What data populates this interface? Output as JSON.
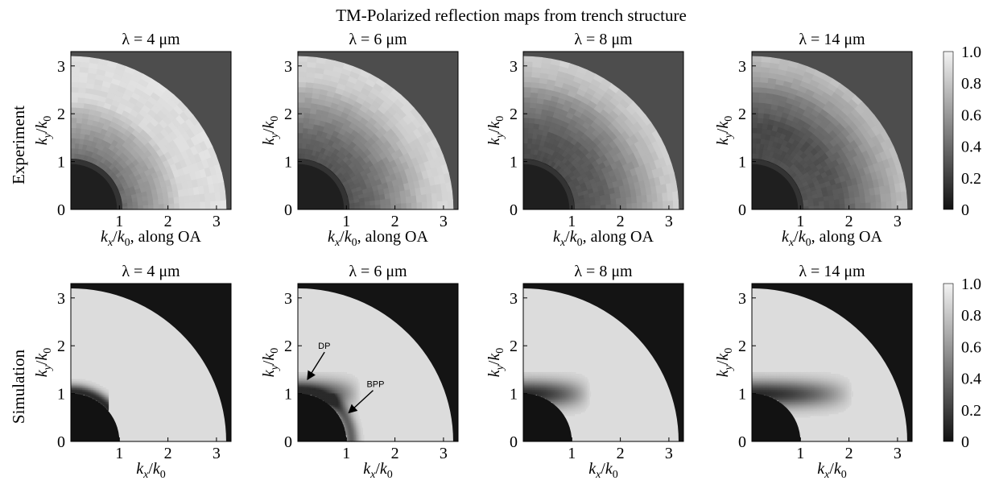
{
  "figure_title": "TM-Polarized reflection maps from trench structure",
  "row_labels": [
    "Experiment",
    "Simulation"
  ],
  "colorbar_ticks": [
    "1.0",
    "0.8",
    "0.6",
    "0.4",
    "0.2",
    "0"
  ],
  "colors": {
    "outside_region": "#4d4d4d",
    "outside_region_sim": "#141414",
    "max": "#f2f2f2",
    "min": "#1a1a1a"
  },
  "chart_data": [
    {
      "type": "heatmap",
      "row": "Experiment",
      "title": "λ = 4 μm",
      "xlabel": "k_x/k_0, along OA",
      "ylabel": "k_y/k_0",
      "xlim": [
        0,
        3.3
      ],
      "ylim": [
        0,
        3.3
      ],
      "xticks": [
        "1",
        "2",
        "3"
      ],
      "yticks": [
        "0",
        "1",
        "2",
        "3"
      ],
      "region": "quarter disk r ≤ 3.2 (outside ≈ 0.3)",
      "profile": [
        {
          "r": 0.0,
          "value": 0.28
        },
        {
          "r": 0.9,
          "value": 0.3
        },
        {
          "r": 1.0,
          "value": 0.05
        },
        {
          "r": 1.1,
          "value": 0.4
        },
        {
          "r": 1.5,
          "value": 0.55
        },
        {
          "r": 2.0,
          "value": 0.72
        },
        {
          "r": 2.3,
          "value": 0.88
        },
        {
          "r": 3.2,
          "value": 0.92
        }
      ]
    },
    {
      "type": "heatmap",
      "row": "Experiment",
      "title": "λ = 6 μm",
      "xlabel": "k_x/k_0, along OA",
      "ylabel": "k_y/k_0",
      "xlim": [
        0,
        3.3
      ],
      "ylim": [
        0,
        3.3
      ],
      "xticks": [
        "1",
        "2",
        "3"
      ],
      "yticks": [
        "0",
        "1",
        "2",
        "3"
      ],
      "profile": [
        {
          "r": 0.0,
          "value": 0.28
        },
        {
          "r": 0.9,
          "value": 0.3
        },
        {
          "r": 1.0,
          "value": 0.05
        },
        {
          "r": 1.1,
          "value": 0.3
        },
        {
          "r": 1.6,
          "value": 0.4
        },
        {
          "r": 2.2,
          "value": 0.62
        },
        {
          "r": 2.7,
          "value": 0.82
        },
        {
          "r": 3.2,
          "value": 0.88
        }
      ]
    },
    {
      "type": "heatmap",
      "row": "Experiment",
      "title": "λ = 8 μm",
      "xlabel": "k_x/k_0, along OA",
      "ylabel": "k_y/k_0",
      "xlim": [
        0,
        3.3
      ],
      "ylim": [
        0,
        3.3
      ],
      "xticks": [
        "1",
        "2",
        "3"
      ],
      "yticks": [
        "0",
        "1",
        "2",
        "3"
      ],
      "profile": [
        {
          "r": 0.0,
          "value": 0.3
        },
        {
          "r": 0.9,
          "value": 0.3
        },
        {
          "r": 1.0,
          "value": 0.05
        },
        {
          "r": 1.1,
          "value": 0.28
        },
        {
          "r": 1.7,
          "value": 0.35
        },
        {
          "r": 2.3,
          "value": 0.55
        },
        {
          "r": 2.8,
          "value": 0.75
        },
        {
          "r": 3.2,
          "value": 0.85
        }
      ]
    },
    {
      "type": "heatmap",
      "row": "Experiment",
      "title": "λ = 14 μm",
      "xlabel": "k_x/k_0, along OA",
      "ylabel": "k_y/k_0",
      "xlim": [
        0,
        3.3
      ],
      "ylim": [
        0,
        3.3
      ],
      "xticks": [
        "1",
        "2",
        "3"
      ],
      "yticks": [
        "0",
        "1",
        "2",
        "3"
      ],
      "profile": [
        {
          "r": 0.0,
          "value": 0.32
        },
        {
          "r": 0.9,
          "value": 0.32
        },
        {
          "r": 1.0,
          "value": 0.05
        },
        {
          "r": 1.1,
          "value": 0.3
        },
        {
          "r": 1.8,
          "value": 0.3
        },
        {
          "r": 2.4,
          "value": 0.5
        },
        {
          "r": 2.9,
          "value": 0.68
        },
        {
          "r": 3.2,
          "value": 0.78
        }
      ]
    },
    {
      "type": "heatmap",
      "row": "Simulation",
      "title": "λ = 4 μm",
      "xlabel": "k_x/k_0",
      "ylabel": "k_y/k_0",
      "xlim": [
        0,
        3.3
      ],
      "ylim": [
        0,
        3.3
      ],
      "xticks": [
        "1",
        "2",
        "3"
      ],
      "yticks": [
        "0",
        "1",
        "2",
        "3"
      ],
      "region": "quarter disk r ≤ 3.2 (outside ≈ 0.05)",
      "inner_dark_radius": 1.0,
      "dark_lobe": {
        "r_max": 1.25,
        "x_extent": 0.7
      },
      "base_value": 0.9
    },
    {
      "type": "heatmap",
      "row": "Simulation",
      "title": "λ = 6 μm",
      "xlabel": "k_x/k_0",
      "ylabel": "k_y/k_0",
      "xlim": [
        0,
        3.3
      ],
      "ylim": [
        0,
        3.3
      ],
      "xticks": [
        "1",
        "2",
        "3"
      ],
      "yticks": [
        "0",
        "1",
        "2",
        "3"
      ],
      "inner_dark_radius": 1.0,
      "dark_lobe": {
        "r_max": 1.3,
        "x_extent": 1.3
      },
      "base_value": 0.9,
      "annotations": [
        {
          "text": "DP",
          "target": [
            0.2,
            1.3
          ]
        },
        {
          "text": "BPP",
          "target": [
            1.05,
            0.6
          ]
        }
      ]
    },
    {
      "type": "heatmap",
      "row": "Simulation",
      "title": "λ = 8 μm",
      "xlabel": "k_x/k_0",
      "ylabel": "k_y/k_0",
      "xlim": [
        0,
        3.3
      ],
      "ylim": [
        0,
        3.3
      ],
      "xticks": [
        "1",
        "2",
        "3"
      ],
      "yticks": [
        "0",
        "1",
        "2",
        "3"
      ],
      "inner_dark_radius": 1.0,
      "dark_lobe": {
        "r_max": 1.3,
        "x_extent": 1.4
      },
      "base_value": 0.9
    },
    {
      "type": "heatmap",
      "row": "Simulation",
      "title": "λ = 14 μm",
      "xlabel": "k_x/k_0",
      "ylabel": "k_y/k_0",
      "xlim": [
        0,
        3.3
      ],
      "ylim": [
        0,
        3.3
      ],
      "xticks": [
        "1",
        "2",
        "3"
      ],
      "yticks": [
        "0",
        "1",
        "2",
        "3"
      ],
      "inner_dark_radius": 1.0,
      "dark_lobe": {
        "r_max": 1.35,
        "x_extent": 2.1
      },
      "base_value": 0.9
    }
  ]
}
